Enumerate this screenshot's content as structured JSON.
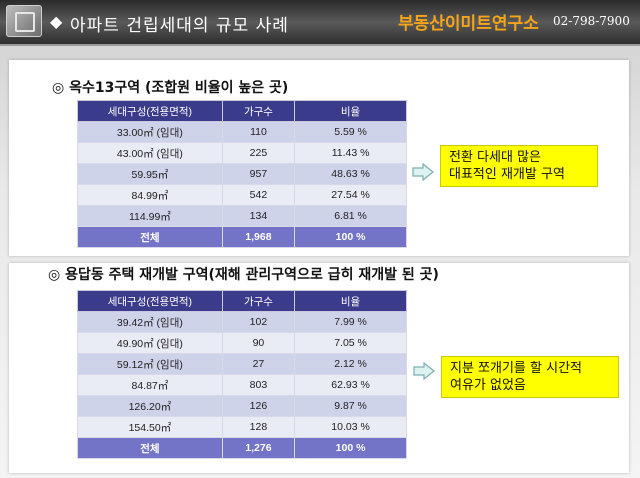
{
  "header": {
    "title": "아파트 건립세대의 규모 사례",
    "brand": "부동산이미트연구소",
    "phone": "02-798-7900"
  },
  "section1": {
    "title": "◎ 옥수13구역 (조합원 비율이 높은 곳)",
    "headers": [
      "세대구성(전용면적)",
      "가구수",
      "비율"
    ],
    "rows": [
      [
        "33.00㎡ (임대)",
        "110",
        "5.59 %"
      ],
      [
        "43.00㎡ (임대)",
        "225",
        "11.43 %"
      ],
      [
        "59.95㎡",
        "957",
        "48.63 %"
      ],
      [
        "84.99㎡",
        "542",
        "27.54 %"
      ],
      [
        "114.99㎡",
        "134",
        "6.81 %"
      ]
    ],
    "total": [
      "전체",
      "1,968",
      "100 %"
    ],
    "note_line1": "전환 다세대 많은",
    "note_line2": "대표적인 재개발 구역"
  },
  "section2": {
    "title": "◎ 용답동 주택 재개발 구역(재해 관리구역으로 급히 재개발 된 곳)",
    "headers": [
      "세대구성(전용면적)",
      "가구수",
      "비율"
    ],
    "rows": [
      [
        "39.42㎡ (임대)",
        "102",
        "7.99 %"
      ],
      [
        "49.90㎡ (임대)",
        "90",
        "7.05 %"
      ],
      [
        "59.12㎡ (임대)",
        "27",
        "2.12 %"
      ],
      [
        "84.87㎡",
        "803",
        "62.93 %"
      ],
      [
        "126.20㎡",
        "126",
        "9.87 %"
      ],
      [
        "154.50㎡",
        "128",
        "10.03 %"
      ]
    ],
    "total": [
      "전체",
      "1,276",
      "100 %"
    ],
    "note_line1": "지분 쪼개기를 할 시간적",
    "note_line2": "여유가 없었음"
  },
  "colors": {
    "header_bg": "#3b3b8c",
    "total_bg": "#7373c7",
    "brand": "#f7a416",
    "callout": "#ffff00"
  }
}
